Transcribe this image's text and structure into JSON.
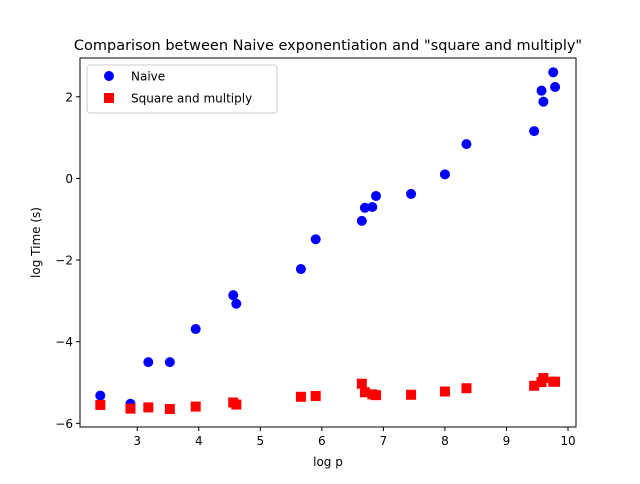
{
  "chart_data": {
    "type": "scatter",
    "title": "Comparison between Naive exponentiation and \"square and multiply\"",
    "xlabel": "log p",
    "ylabel": "log Time (s)",
    "xlim": [
      2.07,
      10.13
    ],
    "ylim": [
      -6.09,
      2.95
    ],
    "xticks": [
      3,
      4,
      5,
      6,
      7,
      8,
      9,
      10
    ],
    "yticks": [
      -6,
      -4,
      -2,
      0,
      2
    ],
    "ytick_labels": [
      "−6",
      "−4",
      "−2",
      "0",
      "2"
    ],
    "grid": false,
    "legend_position": "top-left",
    "series": [
      {
        "name": "Naive",
        "marker": "circle",
        "color": "#0000ff",
        "x": [
          2.4,
          2.89,
          3.18,
          3.53,
          3.95,
          4.56,
          4.61,
          5.66,
          5.9,
          6.65,
          6.7,
          6.82,
          6.88,
          7.45,
          8.0,
          8.35,
          9.45,
          9.57,
          9.6,
          9.76,
          9.79
        ],
        "y": [
          -5.32,
          -5.52,
          -4.5,
          -4.5,
          -3.69,
          -2.86,
          -3.07,
          -2.22,
          -1.49,
          -1.04,
          -0.72,
          -0.7,
          -0.43,
          -0.38,
          0.1,
          0.84,
          1.16,
          2.15,
          1.88,
          2.6,
          2.24
        ]
      },
      {
        "name": "Square and multiply",
        "marker": "square",
        "color": "#ff0000",
        "x": [
          2.4,
          2.89,
          3.18,
          3.53,
          3.95,
          4.56,
          4.61,
          5.66,
          5.9,
          6.65,
          6.7,
          6.82,
          6.88,
          7.45,
          8.0,
          8.35,
          9.45,
          9.57,
          9.6,
          9.76,
          9.79
        ],
        "y": [
          -5.55,
          -5.64,
          -5.61,
          -5.65,
          -5.59,
          -5.49,
          -5.54,
          -5.35,
          -5.33,
          -5.03,
          -5.24,
          -5.29,
          -5.31,
          -5.3,
          -5.22,
          -5.14,
          -5.08,
          -4.99,
          -4.89,
          -4.98,
          -4.98
        ]
      }
    ]
  }
}
